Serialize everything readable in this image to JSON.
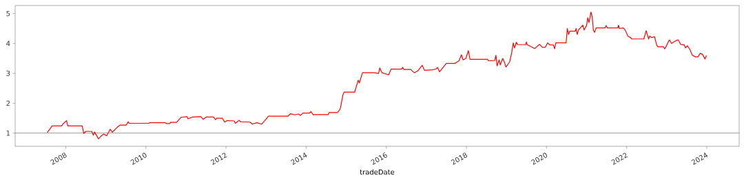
{
  "chart_data": {
    "type": "line",
    "xlabel": "tradeDate",
    "xlim": [
      "2006-09-27",
      "2024-10-23"
    ],
    "ylim": [
      0.56,
      5.27
    ],
    "xticks": [
      {
        "value": "2008-01-01",
        "label": "2008"
      },
      {
        "value": "2010-01-01",
        "label": "2010"
      },
      {
        "value": "2012-01-01",
        "label": "2012"
      },
      {
        "value": "2014-01-01",
        "label": "2014"
      },
      {
        "value": "2016-01-01",
        "label": "2016"
      },
      {
        "value": "2018-01-01",
        "label": "2018"
      },
      {
        "value": "2020-01-01",
        "label": "2020"
      },
      {
        "value": "2022-01-01",
        "label": "2022"
      },
      {
        "value": "2024-01-01",
        "label": "2024"
      }
    ],
    "yticks": [
      1,
      2,
      3,
      4,
      5
    ],
    "ref_lines": [
      {
        "axis": "y",
        "value": 1,
        "color": "#808080"
      }
    ],
    "series": [
      {
        "color": "#ff0000",
        "x": [
          "2007-07-16",
          "2007-08-04",
          "2007-08-29",
          "2007-11-24",
          "2007-12-05",
          "2008-01-08",
          "2008-01-19",
          "2008-05-30",
          "2008-06-14",
          "2008-07-02",
          "2008-08-25",
          "2008-09-09",
          "2008-09-20",
          "2008-10-26",
          "2008-11-24",
          "2008-12-13",
          "2009-01-08",
          "2009-02-10",
          "2009-03-01",
          "2009-04-13",
          "2009-05-12",
          "2009-07-06",
          "2009-07-24",
          "2009-07-31",
          "2010-01-30",
          "2010-02-07",
          "2010-06-25",
          "2010-07-06",
          "2010-08-07",
          "2010-08-14",
          "2010-10-08",
          "2010-11-17",
          "2011-01-12",
          "2011-01-19",
          "2011-03-04",
          "2011-05-16",
          "2011-06-07",
          "2011-07-06",
          "2011-09-09",
          "2011-09-27",
          "2011-10-08",
          "2011-11-28",
          "2011-12-20",
          "2012-01-12",
          "2012-03-15",
          "2012-03-26",
          "2012-05-01",
          "2012-05-12",
          "2012-08-07",
          "2012-08-29",
          "2012-10-08",
          "2012-11-21",
          "2013-01-01",
          "2013-01-23",
          "2013-07-20",
          "2013-08-11",
          "2013-09-20",
          "2013-10-23",
          "2013-11-10",
          "2013-12-02",
          "2014-02-03",
          "2014-02-14",
          "2014-03-08",
          "2014-03-19",
          "2014-07-20",
          "2014-07-31",
          "2014-10-12",
          "2014-11-03",
          "2014-11-10",
          "2014-12-02",
          "2014-12-13",
          "2015-03-19",
          "2015-04-20",
          "2015-05-01",
          "2015-05-19",
          "2015-05-30",
          "2015-09-13",
          "2015-10-23",
          "2015-11-03",
          "2015-11-13",
          "2015-11-24",
          "2016-01-23",
          "2016-02-14",
          "2016-05-19",
          "2016-05-30",
          "2016-06-10",
          "2016-08-11",
          "2016-09-13",
          "2016-10-15",
          "2016-11-24",
          "2016-12-16",
          "2017-02-28",
          "2017-04-02",
          "2017-04-13",
          "2017-05-01",
          "2017-06-03",
          "2017-07-02",
          "2017-09-16",
          "2017-10-26",
          "2017-11-17",
          "2017-12-02",
          "2017-12-27",
          "2018-01-19",
          "2018-02-03",
          "2018-07-13",
          "2018-07-20",
          "2018-09-16",
          "2018-09-27",
          "2018-10-08",
          "2018-10-26",
          "2018-11-06",
          "2018-11-28",
          "2018-12-16",
          "2018-12-27",
          "2019-01-30",
          "2019-02-18",
          "2019-03-04",
          "2019-03-15",
          "2019-04-02",
          "2019-04-13",
          "2019-06-25",
          "2019-07-02",
          "2019-07-09",
          "2019-09-16",
          "2019-10-30",
          "2019-11-24",
          "2019-12-20",
          "2020-01-12",
          "2020-01-30",
          "2020-03-04",
          "2020-03-15",
          "2020-03-26",
          "2020-06-28",
          "2020-07-09",
          "2020-07-20",
          "2020-07-31",
          "2020-09-20",
          "2020-09-27",
          "2020-10-08",
          "2020-10-19",
          "2020-11-28",
          "2020-12-09",
          "2021-01-01",
          "2021-01-12",
          "2021-01-23",
          "2021-02-10",
          "2021-02-21",
          "2021-03-04",
          "2021-03-15",
          "2021-03-29",
          "2021-06-18",
          "2021-06-28",
          "2021-07-09",
          "2021-10-12",
          "2021-10-19",
          "2021-10-26",
          "2021-12-02",
          "2021-12-20",
          "2022-01-12",
          "2022-02-03",
          "2022-02-18",
          "2022-06-07",
          "2022-06-28",
          "2022-07-20",
          "2022-07-31",
          "2022-08-14",
          "2022-09-13",
          "2022-10-01",
          "2022-10-12",
          "2022-12-02",
          "2022-12-13",
          "2022-12-27",
          "2023-01-15",
          "2023-01-26",
          "2023-02-14",
          "2023-03-08",
          "2023-03-29",
          "2023-04-16",
          "2023-05-08",
          "2023-06-10",
          "2023-06-21",
          "2023-07-09",
          "2023-07-31",
          "2023-08-22",
          "2023-09-20",
          "2023-10-12",
          "2023-11-03",
          "2023-11-24",
          "2023-12-16",
          "2023-12-29"
        ],
        "values": [
          1.02,
          1.11,
          1.24,
          1.24,
          1.3,
          1.42,
          1.24,
          1.24,
          0.99,
          1.06,
          1.06,
          0.93,
          1.04,
          0.81,
          0.92,
          0.97,
          0.91,
          1.13,
          1.03,
          1.19,
          1.27,
          1.27,
          1.38,
          1.33,
          1.33,
          1.35,
          1.35,
          1.32,
          1.32,
          1.36,
          1.36,
          1.53,
          1.55,
          1.48,
          1.54,
          1.55,
          1.46,
          1.54,
          1.54,
          1.45,
          1.5,
          1.5,
          1.37,
          1.42,
          1.41,
          1.33,
          1.43,
          1.38,
          1.37,
          1.3,
          1.35,
          1.3,
          1.47,
          1.57,
          1.57,
          1.65,
          1.61,
          1.64,
          1.59,
          1.67,
          1.67,
          1.72,
          1.61,
          1.62,
          1.62,
          1.69,
          1.69,
          1.78,
          1.85,
          2.28,
          2.37,
          2.37,
          2.77,
          2.68,
          2.9,
          3.02,
          3.02,
          3.0,
          3.18,
          3.1,
          3.02,
          2.95,
          3.14,
          3.14,
          3.2,
          3.13,
          3.13,
          3.02,
          3.08,
          3.27,
          3.1,
          3.12,
          3.15,
          3.2,
          3.05,
          3.2,
          3.33,
          3.33,
          3.42,
          3.62,
          3.45,
          3.5,
          3.76,
          3.47,
          3.47,
          3.42,
          3.43,
          3.6,
          3.25,
          3.45,
          3.28,
          3.5,
          3.35,
          3.21,
          3.38,
          3.7,
          4.02,
          3.85,
          4.04,
          3.96,
          3.96,
          4.05,
          3.96,
          3.83,
          3.97,
          3.87,
          3.87,
          4.02,
          3.95,
          3.95,
          3.82,
          4.02,
          4.02,
          4.5,
          4.3,
          4.41,
          4.41,
          4.5,
          4.3,
          4.45,
          4.61,
          4.45,
          4.6,
          4.86,
          4.7,
          5.05,
          4.9,
          4.45,
          4.37,
          4.52,
          4.52,
          4.6,
          4.52,
          4.52,
          4.61,
          4.5,
          4.52,
          4.44,
          4.25,
          4.2,
          4.15,
          4.15,
          4.43,
          4.15,
          4.25,
          4.2,
          4.22,
          3.95,
          3.89,
          3.89,
          3.82,
          3.9,
          4.05,
          4.12,
          4.0,
          4.05,
          4.1,
          4.12,
          3.97,
          3.95,
          3.85,
          3.92,
          3.8,
          3.61,
          3.55,
          3.55,
          3.67,
          3.63,
          3.48,
          3.6
        ]
      }
    ]
  }
}
